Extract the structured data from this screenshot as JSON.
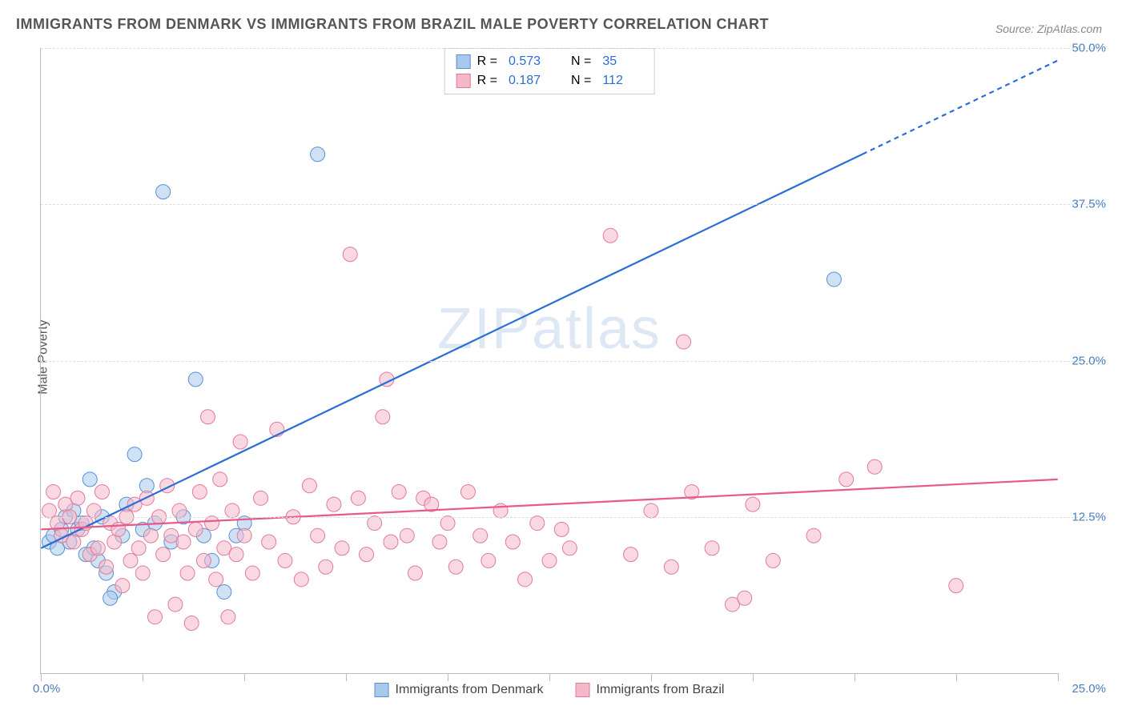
{
  "title": "IMMIGRANTS FROM DENMARK VS IMMIGRANTS FROM BRAZIL MALE POVERTY CORRELATION CHART",
  "source_label": "Source:",
  "source_name": "ZipAtlas.com",
  "ylabel": "Male Poverty",
  "watermark_bold": "ZIP",
  "watermark_thin": "atlas",
  "chart": {
    "type": "scatter",
    "xlim": [
      0,
      25
    ],
    "ylim": [
      0,
      50
    ],
    "x_origin_label": "0.0%",
    "x_max_label": "25.0%",
    "y_ticks": [
      12.5,
      25.0,
      37.5,
      50.0
    ],
    "y_tick_labels": [
      "12.5%",
      "25.0%",
      "37.5%",
      "50.0%"
    ],
    "x_tick_positions": [
      0,
      2.5,
      5,
      7.5,
      10,
      12.5,
      15,
      17.5,
      20,
      22.5,
      25
    ],
    "background_color": "#ffffff",
    "grid_color": "#dddddd",
    "axis_color": "#bbbbbb",
    "tick_label_color": "#4a7ebb",
    "marker_radius": 9,
    "marker_opacity": 0.55,
    "line_width": 2.2,
    "series": [
      {
        "name": "Immigrants from Denmark",
        "color_fill": "#a8c8ec",
        "color_stroke": "#5a8fd0",
        "line_color": "#2a6dd4",
        "r": "0.573",
        "n": "35",
        "trend": {
          "x1": 0,
          "y1": 10.0,
          "x2": 25,
          "y2": 49.0,
          "dash_from_x": 20.2
        },
        "points": [
          [
            0.2,
            10.5
          ],
          [
            0.3,
            11.0
          ],
          [
            0.4,
            10.0
          ],
          [
            0.5,
            11.5
          ],
          [
            0.6,
            12.5
          ],
          [
            0.7,
            10.5
          ],
          [
            0.8,
            13.0
          ],
          [
            0.9,
            11.5
          ],
          [
            1.0,
            12.0
          ],
          [
            1.1,
            9.5
          ],
          [
            1.2,
            15.5
          ],
          [
            1.3,
            10.0
          ],
          [
            1.5,
            12.5
          ],
          [
            1.6,
            8.0
          ],
          [
            1.8,
            6.5
          ],
          [
            2.0,
            11.0
          ],
          [
            2.1,
            13.5
          ],
          [
            2.3,
            17.5
          ],
          [
            2.5,
            11.5
          ],
          [
            2.8,
            12.0
          ],
          [
            3.0,
            38.5
          ],
          [
            3.2,
            10.5
          ],
          [
            3.5,
            12.5
          ],
          [
            3.8,
            23.5
          ],
          [
            4.0,
            11.0
          ],
          [
            4.2,
            9.0
          ],
          [
            4.5,
            6.5
          ],
          [
            4.8,
            11.0
          ],
          [
            5.0,
            12.0
          ],
          [
            1.4,
            9.0
          ],
          [
            1.7,
            6.0
          ],
          [
            2.6,
            15.0
          ],
          [
            6.8,
            41.5
          ],
          [
            19.5,
            31.5
          ]
        ]
      },
      {
        "name": "Immigrants from Brazil",
        "color_fill": "#f5b8c8",
        "color_stroke": "#e07a9a",
        "line_color": "#e85a8a",
        "r": "0.187",
        "n": "112",
        "trend": {
          "x1": 0,
          "y1": 11.5,
          "x2": 25,
          "y2": 15.5
        },
        "points": [
          [
            0.2,
            13.0
          ],
          [
            0.3,
            14.5
          ],
          [
            0.4,
            12.0
          ],
          [
            0.5,
            11.0
          ],
          [
            0.6,
            13.5
          ],
          [
            0.7,
            12.5
          ],
          [
            0.8,
            10.5
          ],
          [
            0.9,
            14.0
          ],
          [
            1.0,
            11.5
          ],
          [
            1.1,
            12.0
          ],
          [
            1.2,
            9.5
          ],
          [
            1.3,
            13.0
          ],
          [
            1.4,
            10.0
          ],
          [
            1.5,
            14.5
          ],
          [
            1.6,
            8.5
          ],
          [
            1.7,
            12.0
          ],
          [
            1.8,
            10.5
          ],
          [
            1.9,
            11.5
          ],
          [
            2.0,
            7.0
          ],
          [
            2.1,
            12.5
          ],
          [
            2.2,
            9.0
          ],
          [
            2.3,
            13.5
          ],
          [
            2.4,
            10.0
          ],
          [
            2.5,
            8.0
          ],
          [
            2.6,
            14.0
          ],
          [
            2.7,
            11.0
          ],
          [
            2.8,
            4.5
          ],
          [
            2.9,
            12.5
          ],
          [
            3.0,
            9.5
          ],
          [
            3.1,
            15.0
          ],
          [
            3.2,
            11.0
          ],
          [
            3.3,
            5.5
          ],
          [
            3.4,
            13.0
          ],
          [
            3.5,
            10.5
          ],
          [
            3.6,
            8.0
          ],
          [
            3.7,
            4.0
          ],
          [
            3.8,
            11.5
          ],
          [
            3.9,
            14.5
          ],
          [
            4.0,
            9.0
          ],
          [
            4.1,
            20.5
          ],
          [
            4.2,
            12.0
          ],
          [
            4.3,
            7.5
          ],
          [
            4.4,
            15.5
          ],
          [
            4.5,
            10.0
          ],
          [
            4.6,
            4.5
          ],
          [
            4.7,
            13.0
          ],
          [
            4.8,
            9.5
          ],
          [
            4.9,
            18.5
          ],
          [
            5.0,
            11.0
          ],
          [
            5.2,
            8.0
          ],
          [
            5.4,
            14.0
          ],
          [
            5.6,
            10.5
          ],
          [
            5.8,
            19.5
          ],
          [
            6.0,
            9.0
          ],
          [
            6.2,
            12.5
          ],
          [
            6.4,
            7.5
          ],
          [
            6.6,
            15.0
          ],
          [
            6.8,
            11.0
          ],
          [
            7.0,
            8.5
          ],
          [
            7.2,
            13.5
          ],
          [
            7.4,
            10.0
          ],
          [
            7.6,
            33.5
          ],
          [
            7.8,
            14.0
          ],
          [
            8.0,
            9.5
          ],
          [
            8.2,
            12.0
          ],
          [
            8.4,
            20.5
          ],
          [
            8.6,
            10.5
          ],
          [
            8.8,
            14.5
          ],
          [
            9.0,
            11.0
          ],
          [
            9.2,
            8.0
          ],
          [
            9.4,
            14.0
          ],
          [
            9.6,
            13.5
          ],
          [
            9.8,
            10.5
          ],
          [
            10.0,
            12.0
          ],
          [
            10.2,
            8.5
          ],
          [
            10.5,
            14.5
          ],
          [
            10.8,
            11.0
          ],
          [
            11.0,
            9.0
          ],
          [
            11.3,
            13.0
          ],
          [
            11.6,
            10.5
          ],
          [
            11.9,
            7.5
          ],
          [
            12.2,
            12.0
          ],
          [
            12.5,
            9.0
          ],
          [
            12.8,
            11.5
          ],
          [
            13.0,
            10.0
          ],
          [
            8.5,
            23.5
          ],
          [
            14.0,
            35.0
          ],
          [
            14.5,
            9.5
          ],
          [
            15.0,
            13.0
          ],
          [
            15.5,
            8.5
          ],
          [
            15.8,
            26.5
          ],
          [
            16.0,
            14.5
          ],
          [
            16.5,
            10.0
          ],
          [
            17.0,
            5.5
          ],
          [
            17.3,
            6.0
          ],
          [
            17.5,
            13.5
          ],
          [
            18.0,
            9.0
          ],
          [
            19.0,
            11.0
          ],
          [
            19.8,
            15.5
          ],
          [
            20.5,
            16.5
          ],
          [
            22.5,
            7.0
          ]
        ]
      }
    ],
    "legend_stats_label_r": "R =",
    "legend_stats_label_n": "N ="
  }
}
